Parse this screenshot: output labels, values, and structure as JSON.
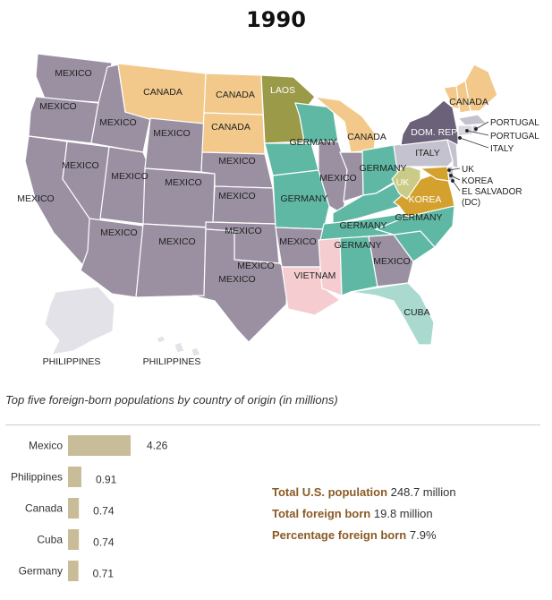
{
  "title": "1990",
  "colors": {
    "Mexico": "#9a90a2",
    "Canada": "#f2c98a",
    "Germany": "#5fb8a4",
    "Laos": "#9a9a48",
    "Dom. Rep.": "#6b6178",
    "Italy": "#c5c2cf",
    "UK": "#c9cb86",
    "Korea": "#d4a12e",
    "Vietnam": "#f5cdd0",
    "Cuba": "#a9d9cf",
    "Philippines": "#e2e2e8",
    "Portugal": "#c5c2cf",
    "El Salvador": "#c5c2cf"
  },
  "map_labels": [
    "MEXICO",
    "MEXICO",
    "MEXICO",
    "MEXICO",
    "MEXICO",
    "MEXICO",
    "MEXICO",
    "MEXICO",
    "MEXICO",
    "MEXICO",
    "MEXICO",
    "MEXICO",
    "MEXICO",
    "MEXICO",
    "MEXICO",
    "MEXICO",
    "MEXICO",
    "MEXICO",
    "CANADA",
    "CANADA",
    "CANADA",
    "CANADA",
    "CANADA",
    "LAOS",
    "GERMANY",
    "GERMANY",
    "GERMANY",
    "GERMANY",
    "GERMANY",
    "GERMANY",
    "DOM. REP.",
    "ITALY",
    "UK",
    "KOREA",
    "VIETNAM",
    "CUBA",
    "PHILIPPINES",
    "PHILIPPINES",
    "PORTUGAL",
    "PORTUGAL",
    "ITALY",
    "UK",
    "KOREA",
    "EL SALVADOR",
    "(DC)"
  ],
  "subtitle": "Top five foreign-born populations by country of origin (in millions)",
  "chart_data": {
    "type": "bar",
    "orientation": "horizontal",
    "categories": [
      "Mexico",
      "Philippines",
      "Canada",
      "Cuba",
      "Germany"
    ],
    "values": [
      4.26,
      0.91,
      0.74,
      0.74,
      0.71
    ],
    "value_labels": [
      "4.26",
      "0.91",
      "0.74",
      "0.74",
      "0.71"
    ],
    "bar_color": "#c9bc98",
    "xlim": [
      0,
      4.26
    ]
  },
  "stats": [
    {
      "label": "Total U.S. population",
      "value": "248.7 million"
    },
    {
      "label": "Total foreign born",
      "value": "19.8 million"
    },
    {
      "label": "Percentage foreign born",
      "value": "7.9%"
    }
  ]
}
